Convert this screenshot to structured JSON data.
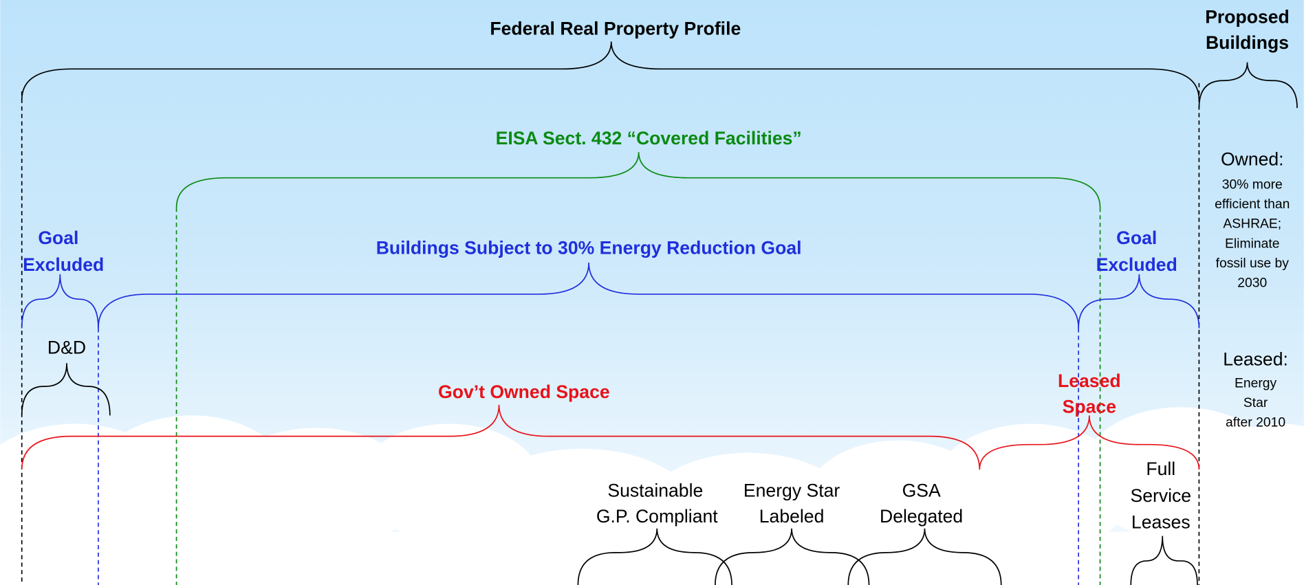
{
  "title": "Federal Real Property Profile",
  "proposed": {
    "heading": [
      "Proposed",
      "Buildings"
    ],
    "owned_label": "Owned:",
    "owned_lines": [
      "30% more",
      "efficient than",
      "ASHRAE;",
      "Eliminate",
      "fossil use by",
      "2030"
    ],
    "leased_label": "Leased:",
    "leased_lines": [
      "Energy",
      "Star",
      "after 2010"
    ]
  },
  "covered": "EISA Sect. 432 “Covered Facilities”",
  "goal": "Buildings Subject to 30% Energy Reduction Goal",
  "excluded_left": [
    "Goal",
    "Excluded"
  ],
  "excluded_right": [
    "Goal",
    "Excluded"
  ],
  "dd": "D&D",
  "owned_space": "Gov’t Owned Space",
  "leased_space": [
    "Leased",
    "Space"
  ],
  "categories": {
    "sustainable": [
      "Sustainable",
      "G.P. Compliant"
    ],
    "energy_star": [
      "Energy Star",
      "Labeled"
    ],
    "gsa": [
      "GSA",
      "Delegated"
    ],
    "full_service": [
      "Full",
      "Service",
      "Leases"
    ]
  }
}
